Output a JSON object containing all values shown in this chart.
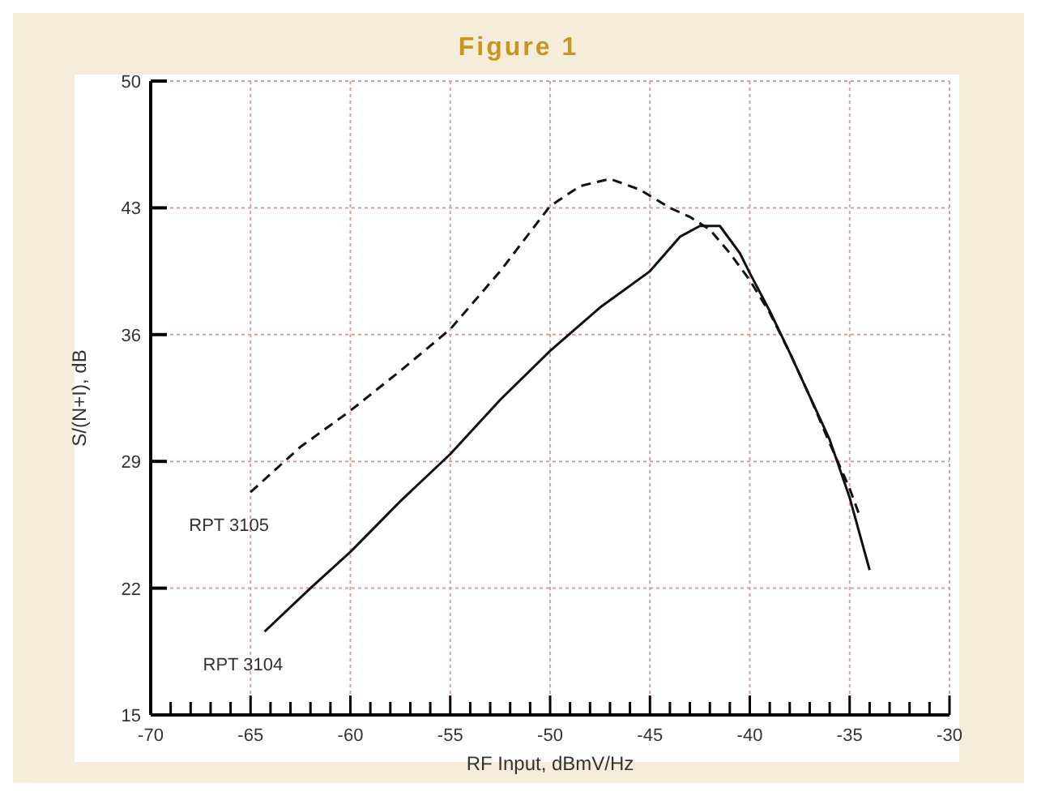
{
  "chart_data": {
    "type": "line",
    "title": "Figure 1",
    "xlabel": "RF Input, dBmV/Hz",
    "ylabel": "S/(N+I), dB",
    "xlim": [
      -70,
      -30
    ],
    "xticks": [
      -70,
      -65,
      -60,
      -55,
      -50,
      -45,
      -40,
      -35,
      -30
    ],
    "ylim": [
      15,
      50
    ],
    "yticks": [
      15,
      22,
      29,
      36,
      43,
      50
    ],
    "grid": true,
    "marker": "none",
    "series": [
      {
        "name": "RPT 3105",
        "color": "#111111",
        "line_style": "dashed",
        "x": [
          -65,
          -62.5,
          -60,
          -57.5,
          -55,
          -52.5,
          -50,
          -48.5,
          -47,
          -45.5,
          -44,
          -43,
          -42,
          -41,
          -40,
          -39,
          -38,
          -37,
          -36,
          -35,
          -34.5
        ],
        "values": [
          27.3,
          29.8,
          31.8,
          34,
          36.3,
          39.5,
          43.1,
          44.2,
          44.6,
          44,
          43,
          42.5,
          41.8,
          40.5,
          39,
          37.2,
          35,
          32.6,
          30,
          27.5,
          26
        ]
      },
      {
        "name": "RPT 3104",
        "color": "#111111",
        "line_style": "solid",
        "x": [
          -64.3,
          -62,
          -60,
          -57.5,
          -55,
          -52.5,
          -50,
          -47.5,
          -45,
          -43.5,
          -42.5,
          -41.5,
          -40.5,
          -40,
          -39,
          -38,
          -37,
          -36,
          -35,
          -34
        ],
        "values": [
          19.6,
          22,
          24,
          26.8,
          29.4,
          32.4,
          35.1,
          37.5,
          39.5,
          41.4,
          42,
          42,
          40.5,
          39.4,
          37.3,
          35,
          32.6,
          30.2,
          27,
          23
        ]
      }
    ]
  }
}
